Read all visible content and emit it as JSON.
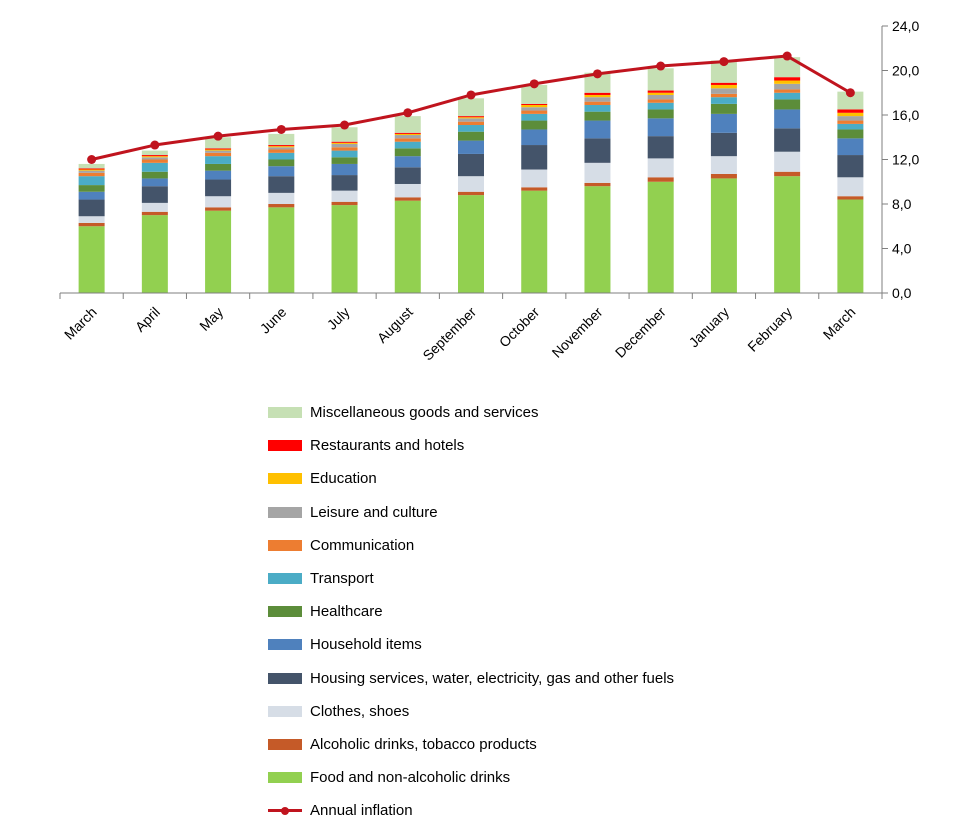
{
  "chart_data": {
    "type": "bar",
    "stacked": true,
    "categories": [
      "March",
      "April",
      "May",
      "June",
      "July",
      "August",
      "September",
      "October",
      "November",
      "December",
      "January",
      "February",
      "March"
    ],
    "y_ticks": [
      "0,0",
      "4,0",
      "8,0",
      "12,0",
      "16,0",
      "20,0",
      "24,0"
    ],
    "ylim": [
      0,
      24
    ],
    "y_axis_position": "right",
    "legend_position": "bottom",
    "series": [
      {
        "name": "Food and non-alcoholic drinks",
        "color": "#92d050",
        "values": [
          6.0,
          7.0,
          7.4,
          7.7,
          7.9,
          8.3,
          8.8,
          9.2,
          9.6,
          10.0,
          10.3,
          10.5,
          8.4
        ]
      },
      {
        "name": "Alcoholic drinks, tobacco products",
        "color": "#c55a28",
        "values": [
          0.3,
          0.3,
          0.3,
          0.3,
          0.3,
          0.3,
          0.3,
          0.3,
          0.3,
          0.4,
          0.4,
          0.4,
          0.3
        ]
      },
      {
        "name": "Clothes, shoes",
        "color": "#d6dde6",
        "values": [
          0.6,
          0.8,
          1.0,
          1.0,
          1.0,
          1.2,
          1.4,
          1.6,
          1.8,
          1.7,
          1.6,
          1.8,
          1.7
        ]
      },
      {
        "name": "Housing services, water, electricity, gas and other fuels",
        "color": "#44546a",
        "values": [
          1.5,
          1.5,
          1.5,
          1.5,
          1.4,
          1.5,
          2.0,
          2.2,
          2.2,
          2.0,
          2.1,
          2.1,
          2.0
        ]
      },
      {
        "name": "Household items",
        "color": "#4f81bd",
        "values": [
          0.7,
          0.7,
          0.8,
          0.9,
          1.0,
          1.0,
          1.2,
          1.4,
          1.6,
          1.6,
          1.7,
          1.7,
          1.5
        ]
      },
      {
        "name": "Healthcare",
        "color": "#5c8d3a",
        "values": [
          0.6,
          0.6,
          0.6,
          0.6,
          0.6,
          0.7,
          0.8,
          0.8,
          0.8,
          0.8,
          0.9,
          0.9,
          0.8
        ]
      },
      {
        "name": "Transport",
        "color": "#4bacc6",
        "values": [
          0.8,
          0.8,
          0.7,
          0.6,
          0.6,
          0.6,
          0.6,
          0.6,
          0.6,
          0.6,
          0.6,
          0.6,
          0.5
        ]
      },
      {
        "name": "Communication",
        "color": "#ed7d31",
        "values": [
          0.3,
          0.3,
          0.3,
          0.3,
          0.3,
          0.3,
          0.3,
          0.3,
          0.3,
          0.3,
          0.3,
          0.3,
          0.3
        ]
      },
      {
        "name": "Leisure and culture",
        "color": "#a5a5a5",
        "values": [
          0.2,
          0.2,
          0.2,
          0.2,
          0.3,
          0.3,
          0.3,
          0.3,
          0.4,
          0.4,
          0.5,
          0.5,
          0.4
        ]
      },
      {
        "name": "Education",
        "color": "#ffc000",
        "values": [
          0.1,
          0.1,
          0.1,
          0.1,
          0.1,
          0.1,
          0.1,
          0.2,
          0.2,
          0.2,
          0.3,
          0.3,
          0.3
        ]
      },
      {
        "name": "Restaurants and hotels",
        "color": "#ff0000",
        "values": [
          0.1,
          0.1,
          0.1,
          0.1,
          0.1,
          0.1,
          0.1,
          0.1,
          0.2,
          0.2,
          0.2,
          0.3,
          0.3
        ]
      },
      {
        "name": "Miscellaneous goods and services",
        "color": "#c6e0b4",
        "values": [
          0.4,
          0.4,
          1.0,
          1.0,
          1.3,
          1.5,
          1.6,
          1.7,
          1.8,
          2.0,
          2.0,
          1.8,
          1.6
        ]
      }
    ],
    "line_series": {
      "name": "Annual inflation",
      "color": "#c0141e",
      "values": [
        12.0,
        13.3,
        14.1,
        14.7,
        15.1,
        16.2,
        17.8,
        18.8,
        19.7,
        20.4,
        20.8,
        21.3,
        18.0
      ]
    },
    "legend_order": [
      "Miscellaneous goods and services",
      "Restaurants and hotels",
      "Education",
      "Leisure and culture",
      "Communication",
      "Transport",
      "Healthcare",
      "Household items",
      "Housing services, water, electricity, gas and other fuels",
      "Clothes, shoes",
      "Alcoholic drinks, tobacco products",
      "Food and non-alcoholic drinks",
      "Annual inflation"
    ]
  }
}
